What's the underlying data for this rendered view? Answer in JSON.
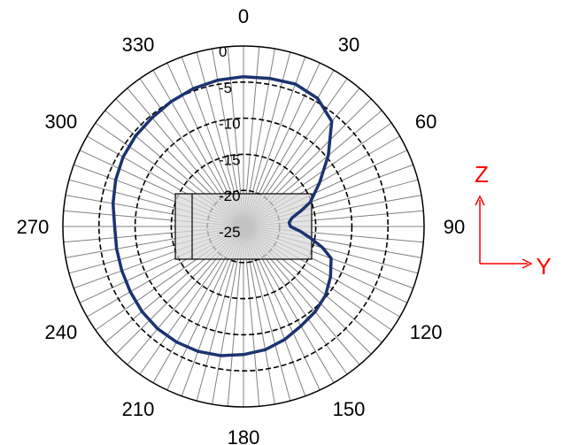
{
  "chart_data": {
    "type": "polar-line",
    "title": "",
    "angle_labels": [
      "0",
      "30",
      "60",
      "90",
      "120",
      "150",
      "180",
      "210",
      "240",
      "270",
      "300",
      "330"
    ],
    "radial_tick_labels": [
      "0",
      "-5",
      "-10",
      "-15",
      "-20",
      "-25"
    ],
    "rlim": [
      -30,
      0
    ],
    "rings": [
      0,
      -6,
      -12,
      -18,
      -24,
      -30
    ],
    "angular_gridline_step_deg": 5,
    "series": [
      {
        "color": "#1a3470",
        "theta": [
          0,
          10,
          20,
          30,
          40,
          50,
          60,
          70,
          75,
          80,
          85,
          90,
          95,
          100,
          105,
          110,
          120,
          130,
          140,
          150,
          160,
          170,
          180,
          190,
          200,
          210,
          220,
          230,
          240,
          250,
          260,
          270,
          280,
          290,
          300,
          310,
          320,
          330,
          340,
          350,
          360
        ],
        "r": [
          -5.1,
          -5.0,
          -4.8,
          -5.4,
          -7.2,
          -11.6,
          -15.4,
          -18.2,
          -20.2,
          -21.8,
          -22.4,
          -22.2,
          -20.5,
          -18.6,
          -16.4,
          -14.5,
          -13.3,
          -12.2,
          -11.5,
          -10.9,
          -10.0,
          -9.2,
          -8.7,
          -8.2,
          -7.9,
          -7.8,
          -7.8,
          -8.0,
          -8.3,
          -8.5,
          -8.6,
          -8.6,
          -8.0,
          -7.4,
          -6.9,
          -6.6,
          -6.4,
          -6.0,
          -5.6,
          -5.3,
          -5.1
        ]
      }
    ],
    "inset_box": {
      "fill": "#d9d9d9",
      "stroke": "#000000"
    },
    "axes_indicator": {
      "labels": [
        "Z",
        "Y"
      ],
      "color": "#ff0000"
    }
  }
}
